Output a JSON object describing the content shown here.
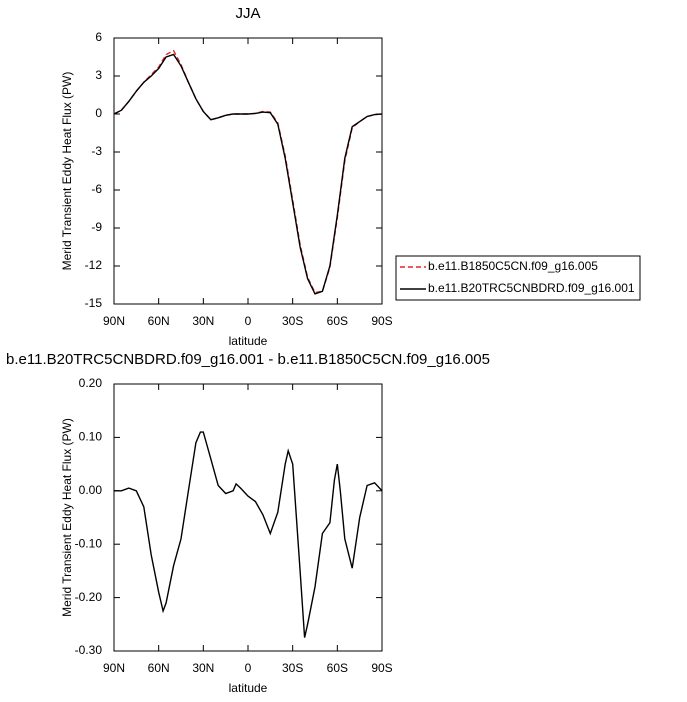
{
  "chart_data": [
    {
      "type": "line",
      "title": "JJA",
      "x_label": "latitude",
      "y_label": "Merid Transient Eddy Heat Flux (PW)",
      "x": [
        90,
        85,
        80,
        75,
        70,
        65,
        60,
        55,
        50,
        45,
        40,
        35,
        30,
        25,
        20,
        15,
        10,
        5,
        0,
        -5,
        -10,
        -15,
        -20,
        -25,
        -30,
        -35,
        -40,
        -45,
        -50,
        -55,
        -60,
        -65,
        -70,
        -75,
        -80,
        -85,
        -90
      ],
      "series": [
        {
          "name": "b.e11.B1850C5CN.f09_g16.005",
          "color": "#e8202a",
          "line_style": "dashed",
          "values": [
            0,
            0.3,
            1.0,
            1.8,
            2.5,
            3.1,
            3.7,
            4.7,
            5.0,
            3.9,
            2.5,
            1.2,
            0.2,
            -0.45,
            -0.3,
            -0.1,
            0,
            0,
            0,
            0.05,
            0.2,
            0.15,
            -0.7,
            -3.3,
            -6.8,
            -10.3,
            -12.9,
            -14.1,
            -14.0,
            -12.1,
            -8.2,
            -3.7,
            -1.1,
            -0.6,
            -0.2,
            -0.05,
            0
          ]
        },
        {
          "name": "b.e11.B20TRC5CNBDRD.f09_g16.001",
          "color": "#000000",
          "line_style": "solid",
          "values": [
            0,
            0.3,
            1.0,
            1.8,
            2.5,
            3.0,
            3.6,
            4.5,
            4.7,
            3.8,
            2.5,
            1.2,
            0.2,
            -0.45,
            -0.3,
            -0.1,
            0,
            0,
            0,
            0.05,
            0.15,
            0.1,
            -0.8,
            -3.5,
            -7.0,
            -10.5,
            -13.0,
            -14.2,
            -14.0,
            -12.0,
            -8.0,
            -3.5,
            -1.0,
            -0.6,
            -0.2,
            -0.05,
            0
          ]
        }
      ],
      "xlim": [
        90,
        -90
      ],
      "ylim": [
        -15,
        6
      ],
      "xticks": [
        {
          "value": 90,
          "label": "90N"
        },
        {
          "value": 60,
          "label": "60N"
        },
        {
          "value": 30,
          "label": "30N"
        },
        0,
        {
          "value": -30,
          "label": "30S"
        },
        {
          "value": -60,
          "label": "60S"
        },
        {
          "value": -90,
          "label": "90S"
        }
      ],
      "yticks": [
        -15,
        -12,
        -9,
        -6,
        -3,
        0,
        3,
        6
      ],
      "legend": "right"
    },
    {
      "type": "line",
      "title": "b.e11.B20TRC5CNBDRD.f09_g16.001 - b.e11.B1850C5CN.f09_g16.005",
      "x_label": "latitude",
      "y_label": "Merid Transient Eddy Heat Flux (PW)",
      "x": [
        90,
        85,
        80,
        75,
        70,
        65,
        60,
        57,
        55,
        50,
        45,
        40,
        35,
        32,
        30,
        25,
        20,
        15,
        10,
        8,
        5,
        0,
        -5,
        -10,
        -15,
        -20,
        -25,
        -27,
        -30,
        -35,
        -38,
        -40,
        -45,
        -50,
        -55,
        -58,
        -60,
        -62,
        -65,
        -70,
        -75,
        -80,
        -85,
        -90
      ],
      "series": [
        {
          "color": "#000000",
          "line_style": "solid",
          "values": [
            0,
            0,
            0.005,
            0,
            -0.03,
            -0.12,
            -0.19,
            -0.225,
            -0.21,
            -0.14,
            -0.09,
            0,
            0.09,
            0.11,
            0.11,
            0.06,
            0.01,
            -0.005,
            0,
            0.013,
            0.005,
            -0.01,
            -0.02,
            -0.045,
            -0.08,
            -0.04,
            0.05,
            0.075,
            0.05,
            -0.15,
            -0.275,
            -0.25,
            -0.18,
            -0.08,
            -0.06,
            0.02,
            0.05,
            0,
            -0.09,
            -0.145,
            -0.05,
            0.01,
            0.015,
            0
          ]
        }
      ],
      "xlim": [
        90,
        -90
      ],
      "ylim": [
        -0.3,
        0.2
      ],
      "xticks": [
        {
          "value": 90,
          "label": "90N"
        },
        {
          "value": 60,
          "label": "60N"
        },
        {
          "value": 30,
          "label": "30N"
        },
        0,
        {
          "value": -30,
          "label": "30S"
        },
        {
          "value": -60,
          "label": "60S"
        },
        {
          "value": -90,
          "label": "90S"
        }
      ],
      "yticks": [
        {
          "value": -0.3,
          "label": "-0.30"
        },
        {
          "value": -0.2,
          "label": "-0.20"
        },
        {
          "value": -0.1,
          "label": "-0.10"
        },
        {
          "value": 0,
          "label": "0.00"
        },
        {
          "value": 0.1,
          "label": "0.10"
        },
        {
          "value": 0.2,
          "label": "0.20"
        }
      ]
    }
  ]
}
